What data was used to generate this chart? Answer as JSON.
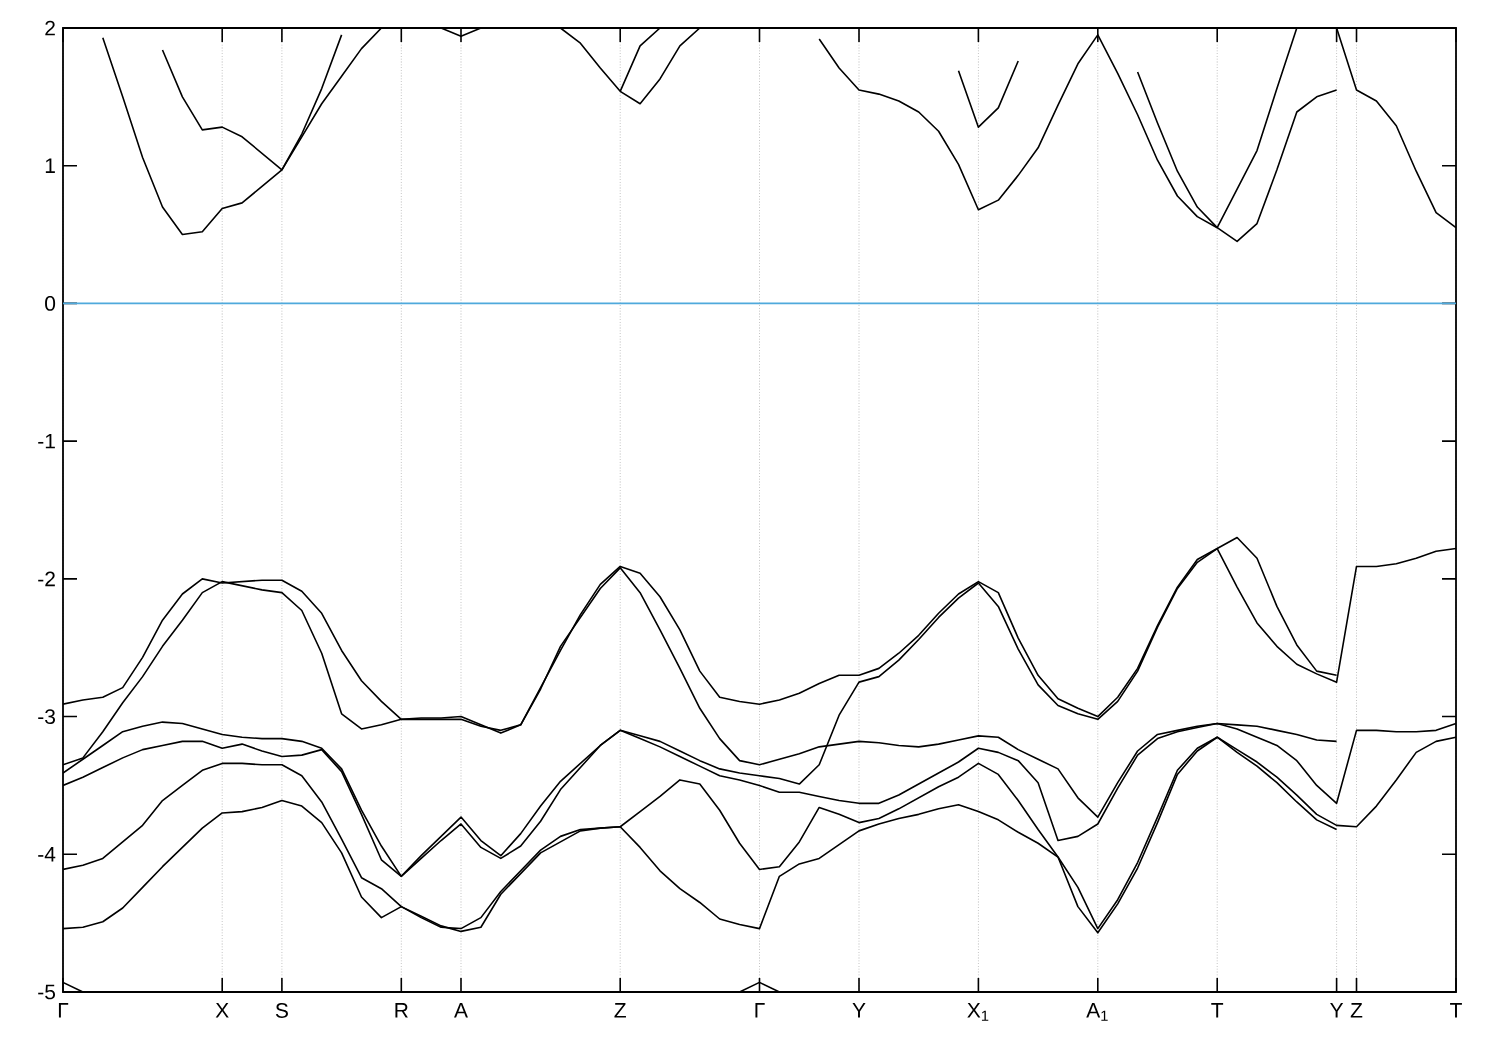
{
  "chart_data": {
    "type": "line",
    "categories": [
      "Γ",
      null,
      null,
      null,
      null,
      null,
      null,
      null,
      "X",
      null,
      null,
      "S",
      null,
      null,
      null,
      null,
      null,
      "R",
      null,
      null,
      "A",
      null,
      null,
      null,
      null,
      null,
      null,
      null,
      "Z",
      null,
      null,
      null,
      null,
      null,
      null,
      "Γ",
      null,
      null,
      null,
      null,
      "Y",
      null,
      null,
      null,
      null,
      null,
      "X$_{1}$",
      null,
      null,
      null,
      null,
      null,
      "A$_{1}$",
      null,
      null,
      null,
      null,
      null,
      "T",
      null,
      null,
      null,
      null,
      null,
      "Y",
      "Z",
      null,
      null,
      null,
      null,
      "T"
    ],
    "ylim": [
      -5,
      2
    ],
    "yticks": [
      -5,
      -4,
      -3,
      -2,
      -1,
      0,
      1,
      2
    ],
    "grid": "x",
    "ref_lines": [
      {
        "axis": "y",
        "value": 0,
        "color": "#4fa9dc"
      }
    ],
    "series": [
      {
        "color": "#000000",
        "values": [
          null,
          null,
          1.93,
          1.5,
          1.06,
          0.7,
          0.5,
          0.52,
          0.69,
          0.73,
          0.85,
          0.97,
          1.21,
          1.45,
          1.65,
          1.85,
          2,
          null,
          null,
          null,
          null,
          null,
          null,
          null,
          null,
          null,
          null,
          null,
          null,
          null,
          null,
          null,
          null,
          null,
          null,
          null,
          null,
          null,
          null,
          null,
          null,
          null,
          null,
          null,
          null,
          null,
          null,
          null,
          null,
          null,
          null,
          null,
          null,
          null,
          null,
          null,
          null,
          null,
          null,
          null,
          null,
          null,
          null,
          null,
          null,
          null,
          null,
          null,
          null,
          null,
          null
        ]
      },
      {
        "color": "#000000",
        "values": [
          null,
          null,
          null,
          null,
          null,
          1.84,
          1.5,
          1.26,
          1.28,
          1.21,
          1.09,
          0.97,
          1.23,
          1.56,
          1.95,
          null,
          null,
          null,
          null,
          null,
          null,
          null,
          null,
          null,
          null,
          null,
          null,
          null,
          null,
          null,
          null,
          null,
          null,
          null,
          null,
          null,
          null,
          null,
          null,
          null,
          null,
          null,
          null,
          null,
          null,
          null,
          null,
          null,
          null,
          null,
          null,
          null,
          null,
          null,
          null,
          null,
          null,
          null,
          null,
          null,
          null,
          null,
          null,
          null,
          null,
          null,
          null,
          null,
          null,
          null,
          null
        ]
      },
      {
        "color": "#000000",
        "values": [
          null,
          null,
          null,
          null,
          null,
          null,
          null,
          null,
          null,
          null,
          null,
          null,
          null,
          null,
          null,
          null,
          null,
          null,
          null,
          2,
          1.94,
          2,
          null,
          null,
          null,
          null,
          null,
          null,
          null,
          null,
          null,
          null,
          null,
          null,
          null,
          null,
          null,
          null,
          null,
          null,
          null,
          null,
          null,
          null,
          null,
          null,
          null,
          null,
          null,
          null,
          null,
          null,
          null,
          null,
          null,
          null,
          null,
          null,
          null,
          null,
          null,
          null,
          null,
          null,
          null,
          null,
          null,
          null,
          null,
          null,
          null
        ]
      },
      {
        "color": "#000000",
        "values": [
          null,
          null,
          null,
          null,
          null,
          null,
          null,
          null,
          null,
          null,
          null,
          null,
          null,
          null,
          null,
          null,
          null,
          null,
          null,
          null,
          null,
          null,
          null,
          null,
          null,
          2,
          1.89,
          1.71,
          1.54,
          1.87,
          2,
          null,
          null,
          null,
          null,
          null,
          null,
          null,
          null,
          null,
          null,
          null,
          null,
          null,
          null,
          null,
          null,
          null,
          null,
          null,
          null,
          null,
          null,
          null,
          null,
          null,
          null,
          null,
          null,
          null,
          null,
          null,
          null,
          null,
          null,
          null,
          null,
          null,
          null,
          null,
          null
        ]
      },
      {
        "color": "#000000",
        "values": [
          null,
          null,
          null,
          null,
          null,
          null,
          null,
          null,
          null,
          null,
          null,
          null,
          null,
          null,
          null,
          null,
          null,
          null,
          null,
          null,
          null,
          null,
          null,
          null,
          null,
          null,
          null,
          null,
          1.54,
          1.45,
          1.63,
          1.87,
          2,
          null,
          null,
          null,
          null,
          null,
          null,
          null,
          null,
          null,
          null,
          null,
          null,
          null,
          null,
          null,
          null,
          null,
          null,
          null,
          null,
          null,
          null,
          null,
          null,
          null,
          null,
          null,
          null,
          null,
          null,
          null,
          null,
          null,
          null,
          null,
          null,
          null,
          null
        ]
      },
      {
        "color": "#000000",
        "values": [
          null,
          null,
          null,
          null,
          null,
          null,
          null,
          null,
          null,
          null,
          null,
          null,
          null,
          null,
          null,
          null,
          null,
          null,
          null,
          null,
          null,
          null,
          null,
          null,
          null,
          null,
          null,
          null,
          null,
          null,
          null,
          null,
          null,
          null,
          null,
          null,
          null,
          null,
          1.92,
          1.71,
          1.55,
          1.52,
          1.47,
          1.39,
          1.25,
          1.01,
          0.68,
          0.75,
          0.93,
          1.13,
          1.44,
          1.74,
          1.95,
          1.67,
          1.37,
          1.04,
          0.78,
          0.63,
          0.55,
          0.83,
          1.11,
          1.56,
          2,
          null,
          null,
          null,
          null,
          null,
          null,
          null,
          null
        ]
      },
      {
        "color": "#000000",
        "values": [
          null,
          null,
          null,
          null,
          null,
          null,
          null,
          null,
          null,
          null,
          null,
          null,
          null,
          null,
          null,
          null,
          null,
          null,
          null,
          null,
          null,
          null,
          null,
          null,
          null,
          null,
          null,
          null,
          null,
          null,
          null,
          null,
          null,
          null,
          null,
          null,
          null,
          null,
          null,
          null,
          null,
          null,
          null,
          null,
          null,
          null,
          null,
          null,
          null,
          null,
          null,
          null,
          null,
          null,
          1.68,
          1.31,
          0.96,
          0.7,
          0.55,
          0.45,
          0.58,
          0.97,
          1.39,
          1.5,
          1.55,
          null,
          null,
          null,
          null,
          null,
          null
        ]
      },
      {
        "color": "#000000",
        "values": [
          null,
          null,
          null,
          null,
          null,
          null,
          null,
          null,
          null,
          null,
          null,
          null,
          null,
          null,
          null,
          null,
          null,
          null,
          null,
          null,
          null,
          null,
          null,
          null,
          null,
          null,
          null,
          null,
          null,
          null,
          null,
          null,
          null,
          null,
          null,
          null,
          null,
          null,
          null,
          null,
          null,
          null,
          null,
          null,
          null,
          null,
          null,
          null,
          null,
          null,
          null,
          null,
          null,
          null,
          null,
          null,
          null,
          null,
          null,
          null,
          null,
          null,
          null,
          null,
          2,
          1.55,
          1.47,
          1.29,
          0.96,
          0.66,
          0.55
        ]
      },
      {
        "color": "#000000",
        "values": [
          null,
          null,
          null,
          null,
          null,
          null,
          null,
          null,
          null,
          null,
          null,
          null,
          null,
          null,
          null,
          null,
          null,
          null,
          null,
          null,
          null,
          null,
          null,
          null,
          null,
          null,
          null,
          null,
          null,
          null,
          null,
          null,
          null,
          null,
          null,
          null,
          null,
          null,
          null,
          null,
          null,
          null,
          null,
          null,
          null,
          1.69,
          1.28,
          1.42,
          1.76,
          null,
          null,
          null,
          null,
          null,
          null,
          null,
          null,
          null,
          null,
          null,
          null,
          null,
          null,
          null,
          null,
          null,
          null,
          null,
          null,
          null,
          null
        ]
      },
      {
        "color": "#000000",
        "values": [
          -2.91,
          -2.88,
          -2.86,
          -2.79,
          -2.57,
          -2.3,
          -2.11,
          -2.0,
          -2.03,
          -2.02,
          -2.01,
          -2.01,
          -2.09,
          -2.25,
          -2.52,
          -2.74,
          -2.89,
          -3.02,
          -3.02,
          -3.02,
          -3.02,
          -3.07,
          -3.1,
          -3.06,
          -2.79,
          -2.52,
          -2.26,
          -2.04,
          -1.91,
          -1.96,
          -2.13,
          -2.37,
          -2.67,
          -2.86,
          -2.89,
          -2.91,
          -2.88,
          -2.83,
          -2.76,
          -2.7,
          -2.7,
          -2.65,
          -2.54,
          -2.41,
          -2.25,
          -2.11,
          -2.02,
          -2.1,
          -2.43,
          -2.7,
          -2.87,
          -2.94,
          -3.0,
          -2.86,
          -2.65,
          -2.34,
          -2.06,
          -1.86,
          -1.78,
          -1.7,
          -1.85,
          -2.2,
          -2.48,
          -2.67,
          -2.7,
          null,
          null,
          null,
          null,
          null,
          null
        ]
      },
      {
        "color": "#000000",
        "values": [
          -3.35,
          -3.3,
          -3.11,
          -2.9,
          -2.71,
          -2.49,
          -2.3,
          -2.1,
          -2.02,
          -2.05,
          -2.08,
          -2.1,
          -2.23,
          -2.54,
          -2.98,
          -3.09,
          -3.06,
          -3.02,
          -3.01,
          -3.01,
          -3.0,
          -3.06,
          -3.12,
          -3.06,
          -2.8,
          -2.49,
          -2.28,
          -2.07,
          -1.92,
          -2.1,
          -2.37,
          -2.65,
          -2.94,
          -3.16,
          -3.32,
          -3.35,
          -3.31,
          -3.27,
          -3.22,
          -3.2,
          -3.18,
          -3.19,
          -3.21,
          -3.22,
          -3.2,
          -3.17,
          -3.14,
          -3.15,
          -3.24,
          -3.31,
          -3.38,
          -3.59,
          -3.73,
          -3.48,
          -3.25,
          -3.13,
          -3.1,
          -3.07,
          -3.05,
          -3.06,
          -3.07,
          -3.1,
          -3.13,
          -3.17,
          -3.18,
          null,
          null,
          null,
          null,
          null,
          null
        ]
      },
      {
        "color": "#000000",
        "values": [
          -3.41,
          -3.31,
          -3.21,
          -3.11,
          -3.07,
          -3.04,
          -3.05,
          -3.09,
          -3.13,
          -3.15,
          -3.16,
          -3.16,
          -3.18,
          -3.23,
          -3.38,
          -3.68,
          -3.94,
          -4.16,
          -4.01,
          -3.87,
          -3.73,
          -3.9,
          -4.01,
          -3.85,
          -3.65,
          -3.47,
          -3.34,
          -3.21,
          -3.1,
          -3.14,
          -3.18,
          -3.25,
          -3.32,
          -3.38,
          -3.41,
          -3.43,
          -3.45,
          -3.49,
          -3.35,
          -2.99,
          -2.75,
          -2.71,
          -2.59,
          -2.44,
          -2.28,
          -2.14,
          -2.03,
          -2.2,
          -2.51,
          -2.77,
          -2.92,
          -2.98,
          -3.02,
          -2.89,
          -2.67,
          -2.35,
          -2.07,
          -1.88,
          -1.78,
          -2.06,
          -2.32,
          -2.49,
          -2.62,
          -2.69,
          -2.75,
          -1.91,
          -1.91,
          -1.89,
          -1.85,
          -1.8,
          -1.78
        ]
      },
      {
        "color": "#000000",
        "values": [
          -3.5,
          -3.44,
          -3.37,
          -3.3,
          -3.24,
          -3.21,
          -3.18,
          -3.18,
          -3.23,
          -3.2,
          -3.25,
          -3.29,
          -3.28,
          -3.24,
          -3.4,
          -3.71,
          -4.04,
          -4.16,
          -4.03,
          -3.9,
          -3.78,
          -3.95,
          -4.03,
          -3.94,
          -3.76,
          -3.53,
          -3.37,
          -3.21,
          -3.1,
          -3.16,
          -3.22,
          -3.29,
          -3.36,
          -3.43,
          -3.46,
          -3.5,
          -3.55,
          -3.55,
          -3.58,
          -3.61,
          -3.63,
          -3.63,
          -3.57,
          -3.49,
          -3.41,
          -3.33,
          -3.23,
          -3.26,
          -3.32,
          -3.48,
          -3.9,
          -3.87,
          -3.78,
          -3.52,
          -3.28,
          -3.16,
          -3.11,
          -3.08,
          -3.05,
          -3.09,
          -3.15,
          -3.21,
          -3.32,
          -3.5,
          -3.63,
          -3.1,
          -3.1,
          -3.11,
          -3.11,
          -3.1,
          -3.05
        ]
      },
      {
        "color": "#000000",
        "values": [
          -4.11,
          -4.08,
          -4.03,
          -3.91,
          -3.79,
          -3.61,
          -3.5,
          -3.39,
          -3.34,
          -3.34,
          -3.35,
          -3.35,
          -3.43,
          -3.62,
          -3.89,
          -4.17,
          -4.25,
          -4.38,
          -4.46,
          -4.53,
          -4.54,
          -4.46,
          -4.27,
          -4.12,
          -3.97,
          -3.87,
          -3.82,
          -3.81,
          -3.8,
          -3.69,
          -3.58,
          -3.46,
          -3.49,
          -3.68,
          -3.92,
          -4.11,
          -4.09,
          -3.91,
          -3.66,
          -3.71,
          -3.77,
          -3.74,
          -3.67,
          -3.59,
          -3.51,
          -3.44,
          -3.34,
          -3.42,
          -3.61,
          -3.82,
          -4.02,
          -4.24,
          -4.54,
          -4.33,
          -4.06,
          -3.73,
          -3.39,
          -3.23,
          -3.15,
          -3.24,
          -3.33,
          -3.44,
          -3.57,
          -3.71,
          -3.79,
          -3.8,
          -3.65,
          -3.46,
          -3.26,
          -3.18,
          -3.15
        ]
      },
      {
        "color": "#000000",
        "values": [
          -4.54,
          -4.53,
          -4.49,
          -4.39,
          -4.24,
          -4.09,
          -3.95,
          -3.81,
          -3.7,
          -3.69,
          -3.66,
          -3.61,
          -3.65,
          -3.77,
          -3.99,
          -4.31,
          -4.46,
          -4.38,
          -4.45,
          -4.52,
          -4.56,
          -4.53,
          -4.29,
          -4.14,
          -3.99,
          -3.91,
          -3.83,
          -3.81,
          -3.8,
          -3.95,
          -4.12,
          -4.25,
          -4.35,
          -4.47,
          -4.51,
          -4.54,
          -4.16,
          -4.07,
          -4.03,
          -3.93,
          -3.83,
          -3.78,
          -3.74,
          -3.71,
          -3.67,
          -3.64,
          -3.69,
          -3.75,
          -3.84,
          -3.92,
          -4.02,
          -4.38,
          -4.57,
          -4.36,
          -4.1,
          -3.77,
          -3.42,
          -3.25,
          -3.15,
          -3.26,
          -3.36,
          -3.48,
          -3.62,
          -3.75,
          -3.82,
          null,
          null,
          null,
          null,
          null,
          null
        ]
      },
      {
        "color": "#000000",
        "values": [
          -4.93,
          -5,
          null,
          null,
          null,
          null,
          null,
          null,
          null,
          null,
          null,
          null,
          null,
          null,
          null,
          null,
          null,
          null,
          null,
          null,
          null,
          null,
          null,
          null,
          null,
          null,
          null,
          null,
          null,
          null,
          null,
          null,
          null,
          null,
          null,
          null,
          null,
          null,
          null,
          null,
          null,
          null,
          null,
          null,
          null,
          null,
          null,
          null,
          null,
          null,
          null,
          null,
          null,
          null,
          null,
          null,
          null,
          null,
          null,
          null,
          null,
          null,
          null,
          null,
          null,
          null,
          null,
          null,
          null,
          null,
          null
        ]
      },
      {
        "color": "#000000",
        "values": [
          null,
          null,
          null,
          null,
          null,
          null,
          null,
          null,
          null,
          null,
          null,
          null,
          null,
          null,
          null,
          null,
          null,
          null,
          null,
          null,
          null,
          null,
          null,
          null,
          null,
          null,
          null,
          null,
          null,
          null,
          null,
          null,
          null,
          null,
          -5,
          -4.93,
          -5,
          null,
          null,
          null,
          null,
          null,
          null,
          null,
          null,
          null,
          null,
          null,
          null,
          null,
          null,
          null,
          null,
          null,
          null,
          null,
          null,
          null,
          null,
          null,
          null,
          null,
          null,
          null,
          null,
          null,
          null,
          null,
          null,
          null,
          null
        ]
      }
    ]
  }
}
